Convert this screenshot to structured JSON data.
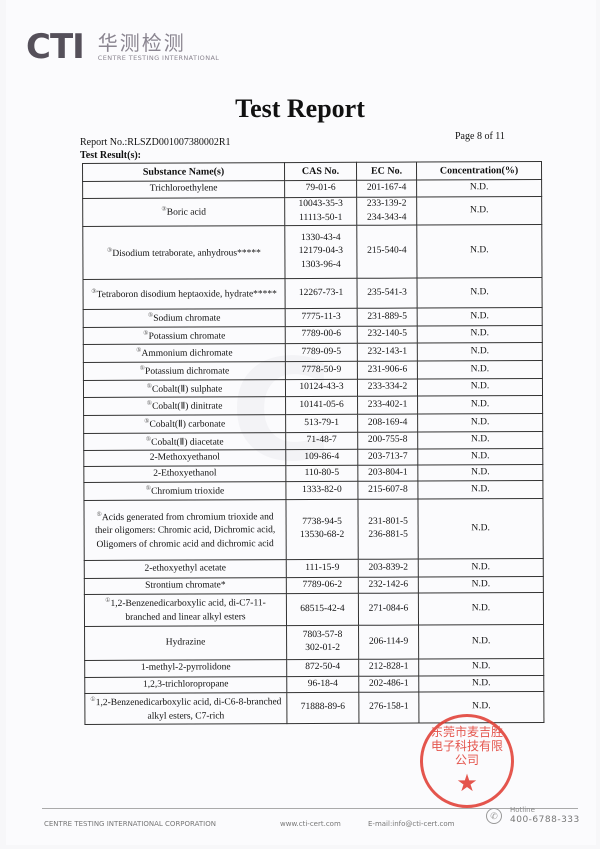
{
  "logo": {
    "brand": "CTI",
    "chinese": "华测检测",
    "english": "CENTRE TESTING INTERNATIONAL"
  },
  "title": "Test Report",
  "report_no": "Report No.:RLSZD001007380002R1",
  "page": "Page 8 of 11",
  "results_label": "Test Result(s):",
  "table": {
    "headers": [
      "Substance Name(s)",
      "CAS No.",
      "EC No.",
      "Concentration(%)"
    ],
    "rows": [
      {
        "mark": "",
        "name": "Trichloroethylene",
        "cas": [
          "79-01-6"
        ],
        "ec": [
          "201-167-4"
        ],
        "conc": "N.D."
      },
      {
        "mark": "③",
        "name": "Boric acid",
        "cas": [
          "10043-35-3",
          "11113-50-1"
        ],
        "ec": [
          "233-139-2",
          "234-343-4"
        ],
        "conc": "N.D."
      },
      {
        "mark": "③",
        "name": "Disodium tetraborate, anhydrous*****",
        "cas": [
          "1330-43-4",
          "12179-04-3",
          "1303-96-4"
        ],
        "ec": [
          "215-540-4"
        ],
        "conc": "N.D."
      },
      {
        "mark": "③",
        "name": "Tetraboron disodium heptaoxide, hydrate*****",
        "cas": [
          "12267-73-1"
        ],
        "ec": [
          "235-541-3"
        ],
        "conc": "N.D."
      },
      {
        "mark": "⑤",
        "name": "Sodium chromate",
        "cas": [
          "7775-11-3"
        ],
        "ec": [
          "231-889-5"
        ],
        "conc": "N.D."
      },
      {
        "mark": "⑤",
        "name": "Potassium chromate",
        "cas": [
          "7789-00-6"
        ],
        "ec": [
          "232-140-5"
        ],
        "conc": "N.D."
      },
      {
        "mark": "⑤",
        "name": "Ammonium dichromate",
        "cas": [
          "7789-09-5"
        ],
        "ec": [
          "232-143-1"
        ],
        "conc": "N.D."
      },
      {
        "mark": "⑤",
        "name": "Potassium dichromate",
        "cas": [
          "7778-50-9"
        ],
        "ec": [
          "231-906-6"
        ],
        "conc": "N.D."
      },
      {
        "mark": "⑤",
        "name": "Cobalt(Ⅱ) sulphate",
        "cas": [
          "10124-43-3"
        ],
        "ec": [
          "233-334-2"
        ],
        "conc": "N.D."
      },
      {
        "mark": "⑤",
        "name": "Cobalt(Ⅱ) dinitrate",
        "cas": [
          "10141-05-6"
        ],
        "ec": [
          "233-402-1"
        ],
        "conc": "N.D."
      },
      {
        "mark": "⑤",
        "name": "Cobalt(Ⅱ) carbonate",
        "cas": [
          "513-79-1"
        ],
        "ec": [
          "208-169-4"
        ],
        "conc": "N.D."
      },
      {
        "mark": "⑤",
        "name": "Cobalt(Ⅱ) diacetate",
        "cas": [
          "71-48-7"
        ],
        "ec": [
          "200-755-8"
        ],
        "conc": "N.D."
      },
      {
        "mark": "",
        "name": "2-Methoxyethanol",
        "cas": [
          "109-86-4"
        ],
        "ec": [
          "203-713-7"
        ],
        "conc": "N.D."
      },
      {
        "mark": "",
        "name": "2-Ethoxyethanol",
        "cas": [
          "110-80-5"
        ],
        "ec": [
          "203-804-1"
        ],
        "conc": "N.D."
      },
      {
        "mark": "⑤",
        "name": "Chromium trioxide",
        "cas": [
          "1333-82-0"
        ],
        "ec": [
          "215-607-8"
        ],
        "conc": "N.D."
      },
      {
        "mark": "⑤",
        "name": "Acids generated from chromium trioxide and their oligomers: Chromic acid, Dichromic acid, Oligomers of chromic acid and dichromic acid",
        "cas": [
          "7738-94-5",
          "13530-68-2"
        ],
        "ec": [
          "231-801-5",
          "236-881-5"
        ],
        "conc": "N.D."
      },
      {
        "mark": "",
        "name": "2-ethoxyethyl acetate",
        "cas": [
          "111-15-9"
        ],
        "ec": [
          "203-839-2"
        ],
        "conc": "N.D."
      },
      {
        "mark": "",
        "name": "Strontium chromate*",
        "cas": [
          "7789-06-2"
        ],
        "ec": [
          "232-142-6"
        ],
        "conc": "N.D."
      },
      {
        "mark": "①",
        "name": "1,2-Benzenedicarboxylic acid, di-C7-11-branched and linear alkyl esters",
        "cas": [
          "68515-42-4"
        ],
        "ec": [
          "271-084-6"
        ],
        "conc": "N.D."
      },
      {
        "mark": "",
        "name": "Hydrazine",
        "cas": [
          "7803-57-8",
          "302-01-2"
        ],
        "ec": [
          "206-114-9"
        ],
        "conc": "N.D."
      },
      {
        "mark": "",
        "name": "1-methyl-2-pyrrolidone",
        "cas": [
          "872-50-4"
        ],
        "ec": [
          "212-828-1"
        ],
        "conc": "N.D."
      },
      {
        "mark": "",
        "name": "1,2,3-trichloropropane",
        "cas": [
          "96-18-4"
        ],
        "ec": [
          "202-486-1"
        ],
        "conc": "N.D."
      },
      {
        "mark": "①",
        "name": "1,2-Benzenedicarboxylic acid, di-C6-8-branched alkyl esters, C7-rich",
        "cas": [
          "71888-89-6"
        ],
        "ec": [
          "276-158-1"
        ],
        "conc": "N.D."
      }
    ]
  },
  "stamp": {
    "text": "东莞市麦吉胜电子科技有限公司",
    "color": "#e0392f"
  },
  "footer": {
    "company": "CENTRE TESTING INTERNATIONAL CORPORATION",
    "website": "www.cti-cert.com",
    "email": "E-mail:info@cti-cert.com",
    "hotline_label": "Hotline",
    "hotline": "400-6788-333"
  }
}
